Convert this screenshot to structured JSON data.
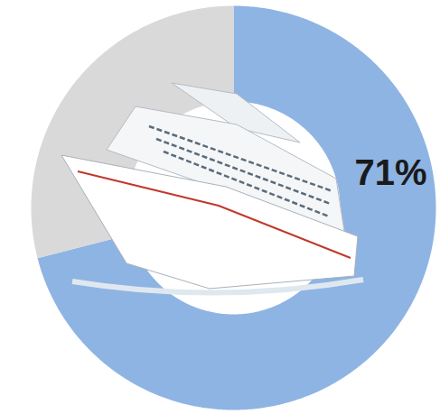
{
  "chart_data": {
    "type": "donut",
    "values": [
      71,
      29
    ],
    "value_labels": [
      "71%",
      null
    ],
    "colors": [
      "#8EB4E3",
      "#D9D9D9"
    ],
    "data_labels": true
  }
}
